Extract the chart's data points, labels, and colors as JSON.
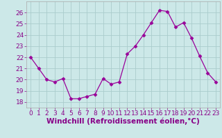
{
  "x": [
    0,
    1,
    2,
    3,
    4,
    5,
    6,
    7,
    8,
    9,
    10,
    11,
    12,
    13,
    14,
    15,
    16,
    17,
    18,
    19,
    20,
    21,
    22,
    23
  ],
  "y": [
    22.0,
    21.0,
    20.0,
    19.8,
    20.1,
    18.3,
    18.3,
    18.5,
    18.7,
    20.1,
    19.6,
    19.8,
    22.3,
    23.0,
    24.0,
    25.1,
    26.2,
    26.1,
    24.7,
    25.1,
    23.7,
    22.1,
    20.6,
    19.8
  ],
  "line_color": "#990099",
  "marker": "D",
  "marker_size": 2.5,
  "background_color": "#cce8e8",
  "grid_color": "#aacccc",
  "xlabel": "Windchill (Refroidissement éolien,°C)",
  "xlabel_color": "#880088",
  "tick_color": "#880088",
  "ylim": [
    17.5,
    27.0
  ],
  "xlim": [
    -0.5,
    23.5
  ],
  "yticks": [
    18,
    19,
    20,
    21,
    22,
    23,
    24,
    25,
    26
  ],
  "xticks": [
    0,
    1,
    2,
    3,
    4,
    5,
    6,
    7,
    8,
    9,
    10,
    11,
    12,
    13,
    14,
    15,
    16,
    17,
    18,
    19,
    20,
    21,
    22,
    23
  ],
  "tick_fontsize": 6.5,
  "xlabel_fontsize": 7.5
}
